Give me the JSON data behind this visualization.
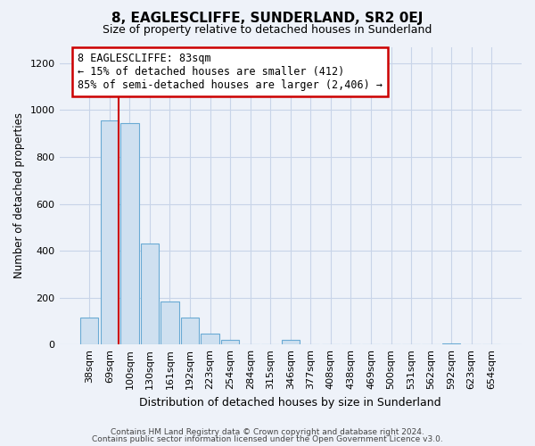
{
  "title": "8, EAGLESCLIFFE, SUNDERLAND, SR2 0EJ",
  "subtitle": "Size of property relative to detached houses in Sunderland",
  "xlabel": "Distribution of detached houses by size in Sunderland",
  "ylabel": "Number of detached properties",
  "bar_labels": [
    "38sqm",
    "69sqm",
    "100sqm",
    "130sqm",
    "161sqm",
    "192sqm",
    "223sqm",
    "254sqm",
    "284sqm",
    "315sqm",
    "346sqm",
    "377sqm",
    "408sqm",
    "438sqm",
    "469sqm",
    "500sqm",
    "531sqm",
    "562sqm",
    "592sqm",
    "623sqm",
    "654sqm"
  ],
  "bar_values": [
    115,
    955,
    945,
    430,
    185,
    115,
    48,
    20,
    2,
    0,
    18,
    2,
    0,
    0,
    0,
    0,
    0,
    0,
    5,
    0,
    0
  ],
  "bar_color": "#cfe0f0",
  "bar_edge_color": "#6aaad4",
  "property_line_color": "#cc0000",
  "annotation_title": "8 EAGLESCLIFFE: 83sqm",
  "annotation_line1": "← 15% of detached houses are smaller (412)",
  "annotation_line2": "85% of semi-detached houses are larger (2,406) →",
  "annotation_box_facecolor": "#ffffff",
  "annotation_box_edgecolor": "#cc0000",
  "ylim": [
    0,
    1270
  ],
  "yticks": [
    0,
    200,
    400,
    600,
    800,
    1000,
    1200
  ],
  "footer1": "Contains HM Land Registry data © Crown copyright and database right 2024.",
  "footer2": "Contains public sector information licensed under the Open Government Licence v3.0.",
  "bg_color": "#eef2f9",
  "plot_bg_color": "#eef2f9",
  "grid_color": "#c8d4e8",
  "title_fontsize": 11,
  "subtitle_fontsize": 9
}
